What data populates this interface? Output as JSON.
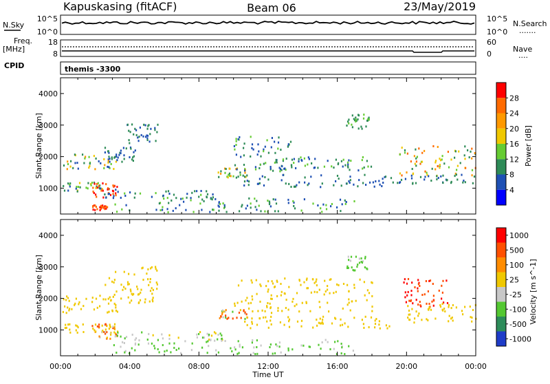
{
  "header": {
    "station": "Kapuskasing (fitACF)",
    "beam": "Beam 06",
    "date": "23/May/2019"
  },
  "nsky_panel": {
    "left_label": "N.Sky",
    "left_ticks": [
      "10^5",
      "10^0"
    ],
    "right_ticks": [
      "10^5",
      "10^0"
    ],
    "right_label": "N.Search",
    "right_legend": "......."
  },
  "freq_panel": {
    "left_label_1": "Freq.",
    "left_label_2": "[MHz]",
    "left_ticks": [
      "18",
      "8"
    ],
    "right_ticks": [
      "60",
      "0"
    ],
    "right_label": "Nave",
    "right_legend": "...."
  },
  "cpid_panel": {
    "left_label": "CPID",
    "program": "themis -3300"
  },
  "time_axis": {
    "ticks": [
      "00:00",
      "04:00",
      "08:00",
      "12:00",
      "16:00",
      "20:00",
      "00:00"
    ],
    "label": "Time UT"
  },
  "colors": {
    "power": [
      "#0000ff",
      "#1e50b4",
      "#2e8b57",
      "#66cc33",
      "#f0c800",
      "#ff9900",
      "#ff6a00",
      "#ff0000"
    ],
    "velocity": [
      "#1e3cc8",
      "#2d8c5a",
      "#54c832",
      "#c8c8c8",
      "#f0c800",
      "#ff8c00",
      "#ff5000",
      "#ff0000"
    ]
  },
  "chart_data": [
    {
      "type": "heatmap",
      "name": "power",
      "ylabel": "Slant Range [km]",
      "yticks": [
        "1000",
        "2000",
        "3000",
        "4000"
      ],
      "ylim": [
        180,
        4500
      ],
      "xlim_hours": [
        0,
        24
      ],
      "colorbar_label": "Power [dB]",
      "colorbar_ticks": [
        "4",
        "8",
        "12",
        "16",
        "20",
        "24",
        "28"
      ],
      "colorbar_range": [
        0,
        32
      ],
      "blobs": [
        {
          "t": [
            0.1,
            3.2
          ],
          "r": [
            850,
            1150
          ],
          "v": [
            4,
            20
          ]
        },
        {
          "t": [
            1.8,
            3.3
          ],
          "r": [
            650,
            1150
          ],
          "v": [
            24,
            31
          ]
        },
        {
          "t": [
            1.8,
            2.8
          ],
          "r": [
            260,
            420
          ],
          "v": [
            24,
            31
          ]
        },
        {
          "t": [
            0.1,
            3.3
          ],
          "r": [
            1550,
            2050
          ],
          "v": [
            4,
            22
          ]
        },
        {
          "t": [
            2.5,
            4.4
          ],
          "r": [
            1800,
            2300
          ],
          "v": [
            4,
            12
          ]
        },
        {
          "t": [
            3.8,
            5.6
          ],
          "r": [
            2300,
            3000
          ],
          "v": [
            4,
            12
          ]
        },
        {
          "t": [
            2.5,
            9.5
          ],
          "r": [
            650,
            900
          ],
          "v": [
            4,
            14
          ]
        },
        {
          "t": [
            3.0,
            17.0
          ],
          "r": [
            200,
            650
          ],
          "v": [
            4,
            16
          ]
        },
        {
          "t": [
            9.0,
            10.8
          ],
          "r": [
            1300,
            1600
          ],
          "v": [
            8,
            24
          ]
        },
        {
          "t": [
            10.0,
            13.5
          ],
          "r": [
            1500,
            2600
          ],
          "v": [
            4,
            14
          ]
        },
        {
          "t": [
            12.0,
            18.0
          ],
          "r": [
            1500,
            1950
          ],
          "v": [
            4,
            16
          ]
        },
        {
          "t": [
            10.5,
            19.0
          ],
          "r": [
            1000,
            1400
          ],
          "v": [
            4,
            10
          ]
        },
        {
          "t": [
            19.5,
            24.0
          ],
          "r": [
            1350,
            2300
          ],
          "v": [
            8,
            28
          ]
        },
        {
          "t": [
            19.0,
            24.0
          ],
          "r": [
            1100,
            1400
          ],
          "v": [
            4,
            12
          ]
        },
        {
          "t": [
            16.5,
            17.8
          ],
          "r": [
            2850,
            3300
          ],
          "v": [
            8,
            14
          ]
        }
      ]
    },
    {
      "type": "heatmap",
      "name": "velocity",
      "ylabel": "Slant Range [km]",
      "yticks": [
        "1000",
        "2000",
        "3000",
        "4000"
      ],
      "ylim": [
        180,
        4500
      ],
      "xlim_hours": [
        0,
        24
      ],
      "colorbar_label": "Velocity [m s^-1]",
      "colorbar_ticks": [
        "1000",
        "500",
        "100",
        "25",
        "-25",
        "-100",
        "-500",
        "-1000"
      ],
      "blobs": [
        {
          "t": [
            0.1,
            3.3
          ],
          "r": [
            1500,
            2050
          ],
          "v": [
            -25,
            25
          ]
        },
        {
          "t": [
            0.1,
            3.2
          ],
          "r": [
            850,
            1150
          ],
          "v": [
            -25,
            25
          ]
        },
        {
          "t": [
            1.8,
            3.3
          ],
          "r": [
            650,
            1150
          ],
          "v": [
            -300,
            50
          ]
        },
        {
          "t": [
            2.5,
            5.6
          ],
          "r": [
            1800,
            3000
          ],
          "v": [
            -25,
            25
          ]
        },
        {
          "t": [
            2.5,
            9.5
          ],
          "r": [
            650,
            900
          ],
          "v": [
            -25,
            150
          ]
        },
        {
          "t": [
            3.0,
            17.0
          ],
          "r": [
            200,
            650
          ],
          "v": [
            30,
            200
          ]
        },
        {
          "t": [
            9.0,
            10.8
          ],
          "r": [
            1300,
            1600
          ],
          "v": [
            -400,
            200
          ]
        },
        {
          "t": [
            10.0,
            18.0
          ],
          "r": [
            1500,
            2600
          ],
          "v": [
            -25,
            25
          ]
        },
        {
          "t": [
            10.5,
            19.0
          ],
          "r": [
            1000,
            1400
          ],
          "v": [
            -25,
            25
          ]
        },
        {
          "t": [
            19.6,
            22.4
          ],
          "r": [
            1700,
            2600
          ],
          "v": [
            -800,
            -150
          ]
        },
        {
          "t": [
            20.0,
            24.0
          ],
          "r": [
            1200,
            1800
          ],
          "v": [
            -25,
            25
          ]
        },
        {
          "t": [
            16.5,
            17.8
          ],
          "r": [
            2850,
            3300
          ],
          "v": [
            60,
            200
          ]
        }
      ]
    }
  ]
}
